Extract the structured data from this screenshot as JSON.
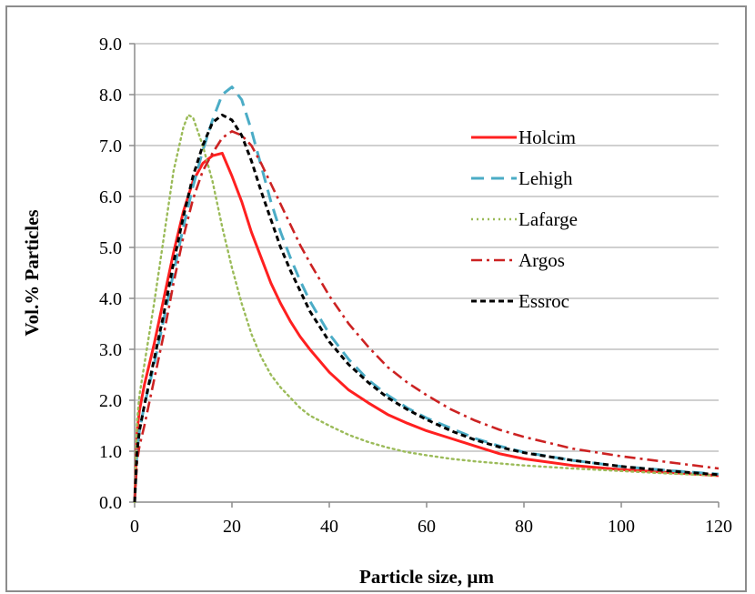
{
  "chart_data": {
    "type": "line",
    "title": "",
    "xlabel": "Particle size, µm",
    "ylabel": "Vol.% Particles",
    "xlim": [
      0,
      120
    ],
    "ylim": [
      0,
      9
    ],
    "x_ticks": [
      0,
      20,
      40,
      60,
      80,
      100,
      120
    ],
    "x_tick_labels": [
      "0",
      "20",
      "40",
      "60",
      "80",
      "100",
      "120"
    ],
    "y_ticks": [
      0,
      1,
      2,
      3,
      4,
      5,
      6,
      7,
      8,
      9
    ],
    "y_tick_labels": [
      "0.0",
      "1.0",
      "2.0",
      "3.0",
      "4.0",
      "5.0",
      "6.0",
      "7.0",
      "8.0",
      "9.0"
    ],
    "grid": "horizontal",
    "legend_position": "upper-right",
    "series": [
      {
        "name": "Holcim",
        "color": "#ff2020",
        "dash": "solid",
        "points": [
          [
            0,
            0
          ],
          [
            0.5,
            1.4
          ],
          [
            1,
            1.8
          ],
          [
            2,
            2.3
          ],
          [
            4,
            3.1
          ],
          [
            6,
            4.0
          ],
          [
            8,
            4.9
          ],
          [
            10,
            5.7
          ],
          [
            12,
            6.3
          ],
          [
            14,
            6.65
          ],
          [
            16,
            6.8
          ],
          [
            18,
            6.85
          ],
          [
            20,
            6.4
          ],
          [
            22,
            5.9
          ],
          [
            24,
            5.3
          ],
          [
            26,
            4.8
          ],
          [
            28,
            4.3
          ],
          [
            30,
            3.9
          ],
          [
            32,
            3.55
          ],
          [
            34,
            3.25
          ],
          [
            36,
            3.0
          ],
          [
            40,
            2.55
          ],
          [
            44,
            2.2
          ],
          [
            48,
            1.95
          ],
          [
            52,
            1.72
          ],
          [
            56,
            1.55
          ],
          [
            60,
            1.4
          ],
          [
            65,
            1.25
          ],
          [
            70,
            1.1
          ],
          [
            75,
            0.95
          ],
          [
            80,
            0.85
          ],
          [
            90,
            0.72
          ],
          [
            100,
            0.64
          ],
          [
            110,
            0.58
          ],
          [
            120,
            0.52
          ]
        ]
      },
      {
        "name": "Lehigh",
        "color": "#4bacc6",
        "dash": "long-dash",
        "points": [
          [
            0,
            0
          ],
          [
            0.5,
            1.0
          ],
          [
            1,
            1.4
          ],
          [
            2,
            1.9
          ],
          [
            4,
            2.7
          ],
          [
            6,
            3.6
          ],
          [
            8,
            4.5
          ],
          [
            10,
            5.4
          ],
          [
            12,
            6.2
          ],
          [
            14,
            6.9
          ],
          [
            16,
            7.5
          ],
          [
            18,
            8.0
          ],
          [
            20,
            8.15
          ],
          [
            22,
            7.9
          ],
          [
            24,
            7.3
          ],
          [
            26,
            6.6
          ],
          [
            28,
            5.9
          ],
          [
            30,
            5.3
          ],
          [
            32,
            4.8
          ],
          [
            34,
            4.35
          ],
          [
            36,
            3.95
          ],
          [
            40,
            3.3
          ],
          [
            44,
            2.8
          ],
          [
            48,
            2.4
          ],
          [
            52,
            2.1
          ],
          [
            56,
            1.85
          ],
          [
            60,
            1.65
          ],
          [
            65,
            1.45
          ],
          [
            70,
            1.25
          ],
          [
            75,
            1.1
          ],
          [
            80,
            0.98
          ],
          [
            90,
            0.82
          ],
          [
            100,
            0.7
          ],
          [
            110,
            0.62
          ],
          [
            120,
            0.55
          ]
        ]
      },
      {
        "name": "Lafarge",
        "color": "#9bbb59",
        "dash": "dotted",
        "points": [
          [
            0,
            0
          ],
          [
            0.5,
            1.6
          ],
          [
            1,
            2.1
          ],
          [
            2,
            2.7
          ],
          [
            4,
            3.9
          ],
          [
            6,
            5.2
          ],
          [
            8,
            6.5
          ],
          [
            10,
            7.35
          ],
          [
            11,
            7.6
          ],
          [
            12,
            7.55
          ],
          [
            14,
            7.0
          ],
          [
            16,
            6.3
          ],
          [
            18,
            5.4
          ],
          [
            20,
            4.6
          ],
          [
            22,
            3.9
          ],
          [
            24,
            3.3
          ],
          [
            26,
            2.85
          ],
          [
            28,
            2.5
          ],
          [
            30,
            2.25
          ],
          [
            32,
            2.05
          ],
          [
            34,
            1.85
          ],
          [
            36,
            1.7
          ],
          [
            40,
            1.5
          ],
          [
            44,
            1.32
          ],
          [
            48,
            1.18
          ],
          [
            52,
            1.07
          ],
          [
            56,
            0.98
          ],
          [
            60,
            0.92
          ],
          [
            65,
            0.85
          ],
          [
            70,
            0.8
          ],
          [
            80,
            0.72
          ],
          [
            90,
            0.66
          ],
          [
            100,
            0.61
          ],
          [
            110,
            0.56
          ],
          [
            120,
            0.52
          ]
        ]
      },
      {
        "name": "Argos",
        "color": "#cc2222",
        "dash": "dash-dot",
        "points": [
          [
            0,
            0
          ],
          [
            0.5,
            0.8
          ],
          [
            1,
            1.1
          ],
          [
            2,
            1.5
          ],
          [
            4,
            2.4
          ],
          [
            6,
            3.3
          ],
          [
            8,
            4.3
          ],
          [
            10,
            5.2
          ],
          [
            12,
            5.95
          ],
          [
            14,
            6.5
          ],
          [
            16,
            6.85
          ],
          [
            18,
            7.15
          ],
          [
            20,
            7.28
          ],
          [
            22,
            7.2
          ],
          [
            24,
            7.0
          ],
          [
            26,
            6.65
          ],
          [
            28,
            6.25
          ],
          [
            30,
            5.85
          ],
          [
            32,
            5.45
          ],
          [
            34,
            5.05
          ],
          [
            36,
            4.7
          ],
          [
            40,
            4.05
          ],
          [
            44,
            3.5
          ],
          [
            48,
            3.05
          ],
          [
            52,
            2.65
          ],
          [
            56,
            2.35
          ],
          [
            60,
            2.1
          ],
          [
            65,
            1.82
          ],
          [
            70,
            1.6
          ],
          [
            75,
            1.42
          ],
          [
            80,
            1.28
          ],
          [
            90,
            1.05
          ],
          [
            100,
            0.9
          ],
          [
            110,
            0.78
          ],
          [
            120,
            0.66
          ]
        ]
      },
      {
        "name": "Essroc",
        "color": "#000000",
        "dash": "short-dash",
        "points": [
          [
            0,
            0
          ],
          [
            0.5,
            1.0
          ],
          [
            1,
            1.4
          ],
          [
            2,
            1.9
          ],
          [
            4,
            2.8
          ],
          [
            6,
            3.7
          ],
          [
            8,
            4.7
          ],
          [
            10,
            5.6
          ],
          [
            12,
            6.4
          ],
          [
            14,
            7.0
          ],
          [
            16,
            7.45
          ],
          [
            18,
            7.6
          ],
          [
            20,
            7.5
          ],
          [
            22,
            7.2
          ],
          [
            24,
            6.7
          ],
          [
            26,
            6.1
          ],
          [
            28,
            5.55
          ],
          [
            30,
            5.0
          ],
          [
            32,
            4.55
          ],
          [
            34,
            4.15
          ],
          [
            36,
            3.75
          ],
          [
            40,
            3.15
          ],
          [
            44,
            2.7
          ],
          [
            48,
            2.35
          ],
          [
            52,
            2.05
          ],
          [
            56,
            1.82
          ],
          [
            60,
            1.62
          ],
          [
            65,
            1.4
          ],
          [
            70,
            1.22
          ],
          [
            75,
            1.08
          ],
          [
            80,
            0.97
          ],
          [
            90,
            0.82
          ],
          [
            100,
            0.7
          ],
          [
            110,
            0.61
          ],
          [
            120,
            0.54
          ]
        ]
      }
    ]
  }
}
